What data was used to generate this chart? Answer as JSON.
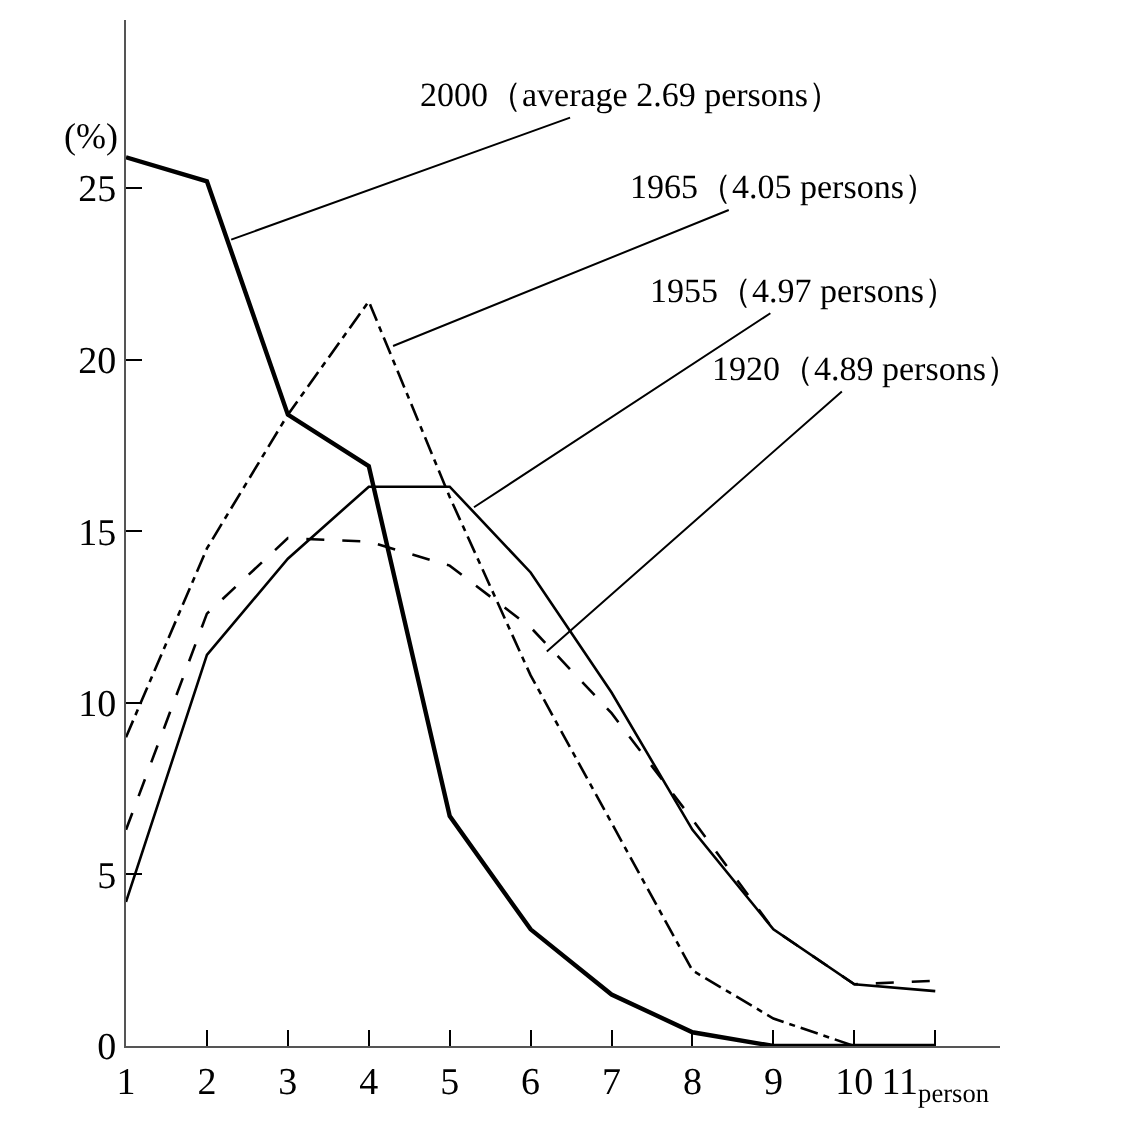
{
  "chart_data": {
    "type": "line",
    "ylabel": "(%)",
    "x": [
      1,
      2,
      3,
      4,
      5,
      6,
      7,
      8,
      9,
      10,
      11
    ],
    "xlim": [
      1,
      11.8
    ],
    "xticks": [
      1,
      2,
      3,
      4,
      5,
      6,
      7,
      8,
      9,
      10,
      {
        "value": 11,
        "label": "11$_{person}$"
      }
    ],
    "ylim": [
      0,
      29.9
    ],
    "yticks": [
      0,
      5,
      10,
      15,
      20,
      25
    ],
    "marker": "none",
    "series": [
      {
        "color": "#000000",
        "line_style": "solid",
        "values": [
          25.9,
          25.2,
          18.4,
          16.9,
          6.7,
          3.4,
          1.5,
          0.4,
          0,
          0,
          0
        ]
      },
      {
        "color": "#000000",
        "line_style": "dashdot",
        "values": [
          9.0,
          14.5,
          18.4,
          21.7,
          16.0,
          10.8,
          6.5,
          2.2,
          0.8,
          0,
          null
        ]
      },
      {
        "color": "#000000",
        "line_style": "solid",
        "values": [
          4.2,
          11.4,
          14.2,
          16.3,
          16.3,
          13.8,
          10.3,
          6.3,
          3.4,
          1.8,
          1.6
        ]
      },
      {
        "color": "#000000",
        "line_style": "dashed",
        "values": [
          6.3,
          12.6,
          14.8,
          14.7,
          14.0,
          12.2,
          9.7,
          6.6,
          3.4,
          1.8,
          1.9
        ]
      }
    ],
    "annotations": [
      {
        "text": "2000（average 2.69 persons）",
        "x": 2.3,
        "y": 23.5
      },
      {
        "text": "1965（4.05 persons）",
        "x": 4.3,
        "y": 20.4
      },
      {
        "text": "1955（4.97 persons）",
        "x": 5.3,
        "y": 15.7
      },
      {
        "text": "1920（4.89 persons）",
        "x": 6.2,
        "y": 11.5
      }
    ]
  }
}
